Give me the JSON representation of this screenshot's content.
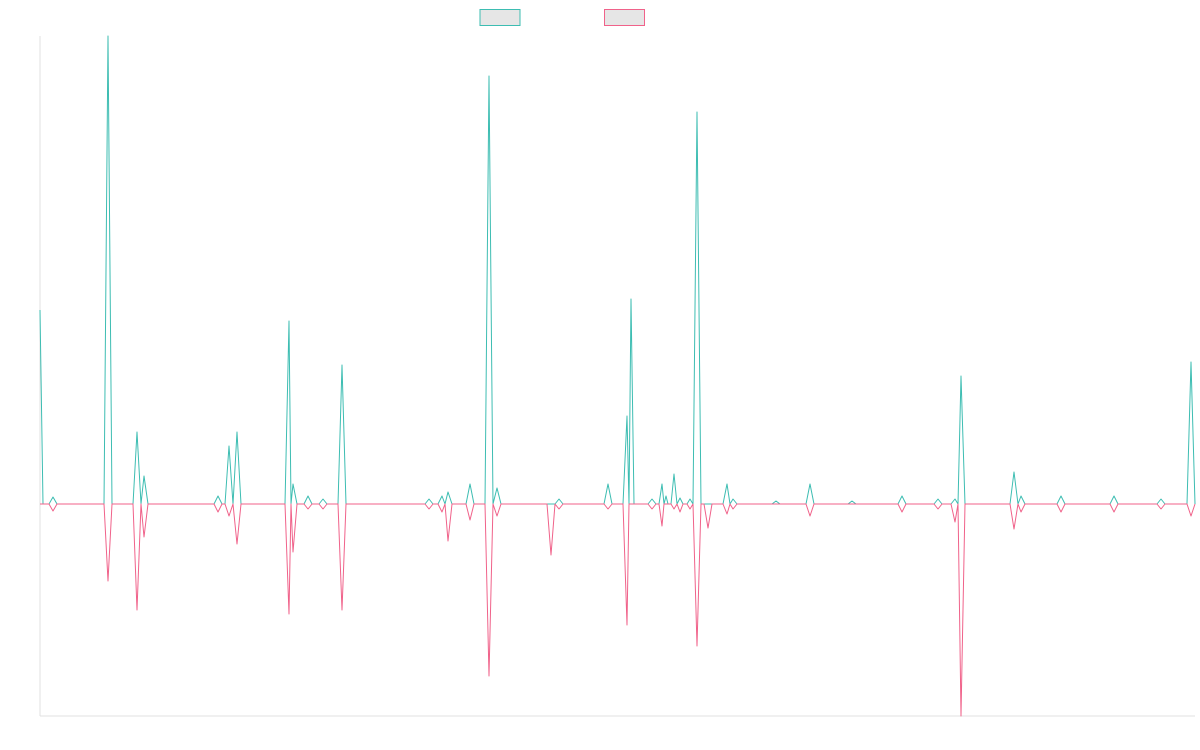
{
  "chart_data": {
    "type": "line",
    "legend": "top",
    "grid": false,
    "xlim": [
      0,
      1155
    ],
    "ylim": [
      -212,
      468
    ],
    "x": [
      0,
      3,
      9,
      13,
      17,
      64,
      68,
      72,
      93,
      97,
      101,
      104,
      108,
      174,
      178,
      182,
      185,
      189,
      193,
      197,
      201,
      245,
      249,
      251,
      253,
      257,
      264,
      268,
      272,
      279,
      283,
      287,
      298,
      302,
      306,
      385,
      389,
      393,
      398,
      402,
      405,
      408,
      412,
      426,
      430,
      434,
      445,
      449,
      453,
      457,
      461,
      507,
      511,
      515,
      519,
      523,
      564,
      568,
      572,
      583,
      587,
      589,
      591,
      594,
      608,
      612,
      616,
      619,
      622,
      624,
      626,
      628,
      631,
      634,
      637,
      640,
      643,
      647,
      650,
      653,
      657,
      661,
      664,
      668,
      672,
      683,
      687,
      690,
      693,
      697,
      732,
      736,
      740,
      766,
      770,
      774,
      808,
      812,
      816,
      858,
      862,
      866,
      894,
      898,
      902,
      911,
      915,
      918,
      921,
      925,
      970,
      974,
      978,
      981,
      985,
      1017,
      1021,
      1025,
      1070,
      1074,
      1078,
      1117,
      1121,
      1125,
      1147,
      1151,
      1155
    ],
    "series": [
      {
        "color": "#3dbdb2",
        "values": [
          194,
          0,
          0,
          7,
          0,
          0,
          468,
          0,
          0,
          72,
          0,
          28,
          0,
          0,
          8,
          0,
          0,
          58,
          0,
          72,
          0,
          0,
          183,
          0,
          20,
          0,
          0,
          8,
          0,
          0,
          5,
          0,
          0,
          139,
          0,
          0,
          5,
          0,
          0,
          8,
          0,
          12,
          0,
          0,
          20,
          0,
          0,
          428,
          0,
          16,
          0,
          0,
          0,
          0,
          5,
          0,
          0,
          20,
          0,
          0,
          88,
          0,
          205,
          0,
          0,
          5,
          0,
          0,
          20,
          0,
          8,
          0,
          0,
          30,
          0,
          6,
          0,
          0,
          5,
          0,
          392,
          0,
          0,
          0,
          0,
          0,
          20,
          0,
          5,
          0,
          0,
          3,
          0,
          0,
          20,
          0,
          0,
          3,
          0,
          0,
          8,
          0,
          0,
          5,
          0,
          0,
          5,
          0,
          128,
          0,
          0,
          32,
          0,
          8,
          0,
          0,
          8,
          0,
          0,
          8,
          0,
          0,
          5,
          0,
          0,
          142,
          0
        ]
      },
      {
        "color": "#f0628a",
        "values": [
          0,
          0,
          0,
          -7,
          0,
          0,
          -77,
          0,
          0,
          -106,
          0,
          -33,
          0,
          0,
          -8,
          0,
          0,
          -12,
          0,
          -40,
          0,
          0,
          -110,
          0,
          -48,
          0,
          0,
          -5,
          0,
          0,
          -5,
          0,
          0,
          -106,
          0,
          0,
          -5,
          0,
          0,
          -8,
          0,
          -37,
          0,
          0,
          -16,
          0,
          0,
          -172,
          0,
          -12,
          0,
          0,
          -51,
          0,
          -5,
          0,
          0,
          -5,
          0,
          0,
          -121,
          0,
          0,
          0,
          0,
          -5,
          0,
          0,
          -22,
          0,
          0,
          0,
          0,
          -5,
          0,
          -8,
          0,
          0,
          -5,
          0,
          -142,
          0,
          0,
          -24,
          0,
          0,
          -10,
          0,
          -5,
          0,
          0,
          0,
          0,
          0,
          -12,
          0,
          0,
          0,
          0,
          0,
          -8,
          0,
          0,
          -5,
          0,
          0,
          -18,
          0,
          -212,
          0,
          0,
          -25,
          0,
          -8,
          0,
          0,
          -8,
          0,
          0,
          -8,
          0,
          0,
          -5,
          0,
          0,
          -12,
          0
        ]
      }
    ]
  }
}
